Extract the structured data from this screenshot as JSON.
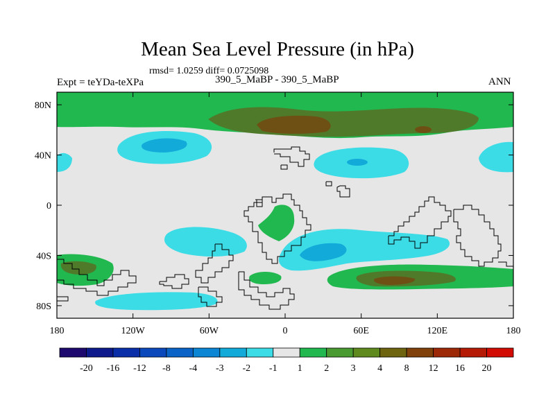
{
  "header": {
    "title": "Mean Sea Level Pressure (in hPa)",
    "stats": "rmsd= 1.0259 diff= 0.0725098",
    "left_label": "Expt = teYDa-teXPa",
    "center_label": "390_5_MaBP - 390_5_MaBP",
    "right_label": "ANN"
  },
  "chart_data": {
    "type": "heatmap",
    "title": "Mean Sea Level Pressure (in hPa)",
    "variable": "MSLP difference",
    "units": "hPa",
    "x_ticks": [
      "180",
      "120W",
      "60W",
      "0",
      "60E",
      "120E",
      "180"
    ],
    "x_values": [
      -180,
      -120,
      -60,
      0,
      60,
      120,
      180
    ],
    "y_ticks": [
      "80N",
      "40N",
      "0",
      "40S",
      "80S"
    ],
    "y_values": [
      80,
      40,
      0,
      -40,
      -80
    ],
    "xlim": [
      -180,
      180
    ],
    "ylim": [
      -90,
      90
    ],
    "colorbar": {
      "labels": [
        "-20",
        "-16",
        "-12",
        "-8",
        "-4",
        "-3",
        "-2",
        "-1",
        "1",
        "2",
        "3",
        "4",
        "8",
        "12",
        "16",
        "20"
      ],
      "colors": [
        "#1e0a6e",
        "#0c1a8c",
        "#0a2ea8",
        "#0a48bc",
        "#0a64c8",
        "#0a86d4",
        "#12aad8",
        "#3cdce6",
        "#e6e6e6",
        "#22b850",
        "#4a9a32",
        "#5e8a1e",
        "#6e6410",
        "#80420a",
        "#9c2808",
        "#b41a06",
        "#d20c04"
      ]
    },
    "colors": {
      "land_outline": "#000000",
      "neutral": "#e6e6e6",
      "green": "#22b850",
      "olive": "#4f7a2a",
      "brown": "#6e5014",
      "cyan": "#3cdce6",
      "blue": "#12aad8",
      "deepblue": "#0a86d4"
    }
  }
}
